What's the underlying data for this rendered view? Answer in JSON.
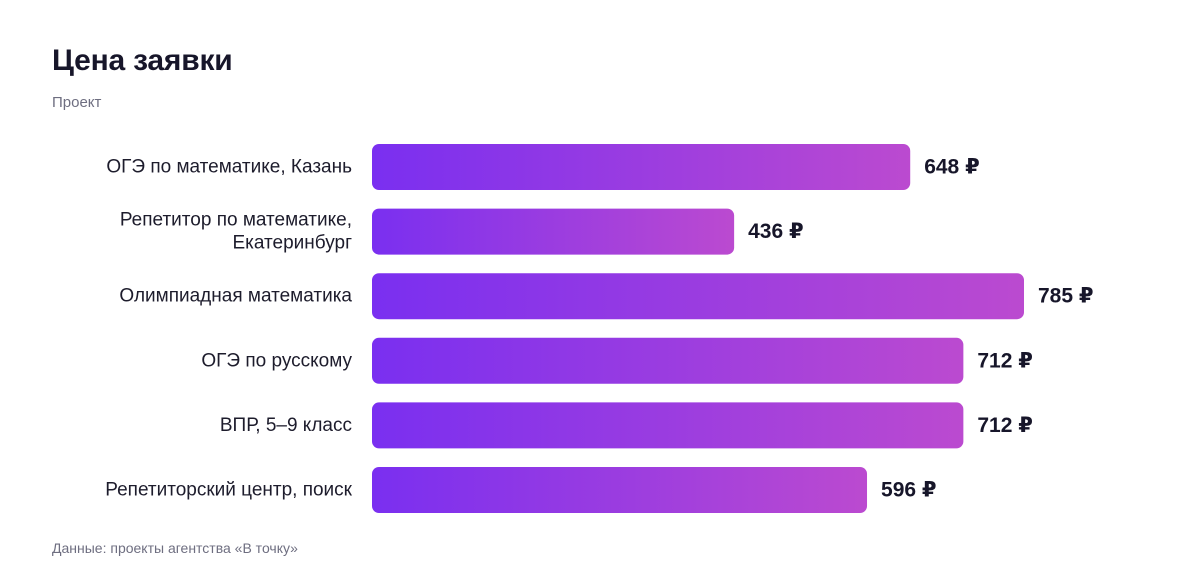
{
  "header": {
    "title": "Цена заявки",
    "subtitle": "Проект"
  },
  "footer": {
    "source": "Данные: проекты агентства «В точку»"
  },
  "colors": {
    "bar_start": "#7a2ff0",
    "bar_end": "#bb4ad0"
  },
  "chart_data": {
    "type": "bar",
    "orientation": "horizontal",
    "categories": [
      [
        "ОГЭ по математике, Казань"
      ],
      [
        "Репетитор по математике,",
        "Екатеринбург"
      ],
      [
        "Олимпиадная математика"
      ],
      [
        "ОГЭ по русскому"
      ],
      [
        "ВПР, 5–9 класс"
      ],
      [
        "Репетиторский центр, поиск"
      ]
    ],
    "values": [
      648,
      436,
      785,
      712,
      712,
      596
    ],
    "value_labels": [
      "648 ₽",
      "436 ₽",
      "785 ₽",
      "712 ₽",
      "712 ₽",
      "596 ₽"
    ],
    "unit": "₽",
    "title": "Цена заявки",
    "xlabel": "",
    "ylabel": "Проект",
    "xlim": [
      0,
      785
    ],
    "grid": false,
    "legend": "none"
  }
}
